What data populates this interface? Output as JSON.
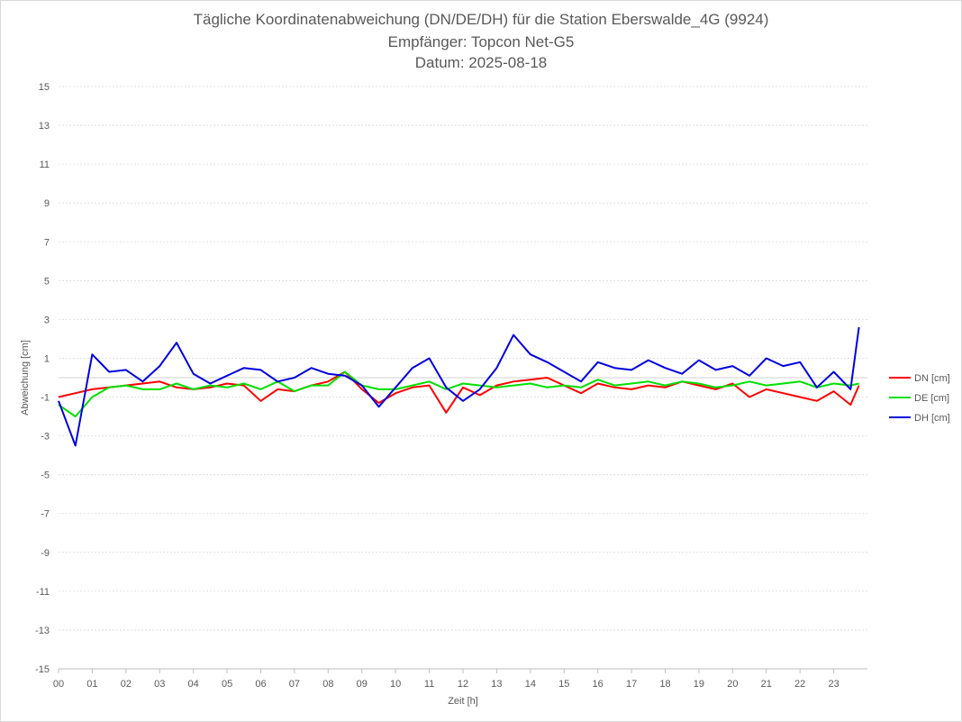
{
  "chart_data": {
    "type": "line",
    "title": "Tägliche Koordinatenabweichung (DN/DE/DH) für die Station Eberswalde_4G (9924)",
    "subtitle": "Empfänger: Topcon Net-G5",
    "date_label": "Datum: 2025-08-18",
    "xlabel": "Zeit [h]",
    "ylabel": "Abweichung [cm]",
    "xlim": [
      0,
      24
    ],
    "ylim": [
      -15,
      15
    ],
    "x_ticks": [
      "00",
      "01",
      "02",
      "03",
      "04",
      "05",
      "06",
      "07",
      "08",
      "09",
      "10",
      "11",
      "12",
      "13",
      "14",
      "15",
      "16",
      "17",
      "18",
      "19",
      "20",
      "21",
      "22",
      "23"
    ],
    "y_ticks": [
      15,
      13,
      11,
      9,
      7,
      5,
      3,
      1,
      -1,
      -3,
      -5,
      -7,
      -9,
      -11,
      -13,
      -15
    ],
    "grid": true,
    "legend_position": "right",
    "x": [
      0,
      0.5,
      1,
      1.5,
      2,
      2.5,
      3,
      3.5,
      4,
      4.5,
      5,
      5.5,
      6,
      6.5,
      7,
      7.5,
      8,
      8.5,
      9,
      9.5,
      10,
      10.5,
      11,
      11.5,
      12,
      12.5,
      13,
      13.5,
      14,
      14.5,
      15,
      15.5,
      16,
      16.5,
      17,
      17.5,
      18,
      18.5,
      19,
      19.5,
      20,
      20.5,
      21,
      21.5,
      22,
      22.5,
      23,
      23.5,
      23.75
    ],
    "series": [
      {
        "name": "DN [cm]",
        "color": "#ff0000",
        "values": [
          -1.0,
          -0.8,
          -0.6,
          -0.5,
          -0.4,
          -0.3,
          -0.2,
          -0.5,
          -0.6,
          -0.5,
          -0.3,
          -0.4,
          -1.2,
          -0.6,
          -0.7,
          -0.4,
          -0.2,
          0.3,
          -0.6,
          -1.3,
          -0.8,
          -0.5,
          -0.4,
          -1.8,
          -0.5,
          -0.9,
          -0.4,
          -0.2,
          -0.1,
          0.0,
          -0.4,
          -0.8,
          -0.3,
          -0.5,
          -0.6,
          -0.4,
          -0.5,
          -0.2,
          -0.4,
          -0.6,
          -0.3,
          -1.0,
          -0.6,
          -0.8,
          -1.0,
          -1.2,
          -0.7,
          -1.4,
          -0.4
        ]
      },
      {
        "name": "DE [cm]",
        "color": "#00e000",
        "values": [
          -1.4,
          -2.0,
          -1.0,
          -0.5,
          -0.4,
          -0.6,
          -0.6,
          -0.3,
          -0.6,
          -0.4,
          -0.5,
          -0.3,
          -0.6,
          -0.2,
          -0.7,
          -0.4,
          -0.4,
          0.3,
          -0.4,
          -0.6,
          -0.6,
          -0.4,
          -0.2,
          -0.6,
          -0.3,
          -0.4,
          -0.5,
          -0.4,
          -0.3,
          -0.5,
          -0.4,
          -0.5,
          -0.1,
          -0.4,
          -0.3,
          -0.2,
          -0.4,
          -0.2,
          -0.3,
          -0.5,
          -0.4,
          -0.2,
          -0.4,
          -0.3,
          -0.2,
          -0.5,
          -0.3,
          -0.4,
          -0.3
        ]
      },
      {
        "name": "DH [cm]",
        "color": "#0000e0",
        "values": [
          -1.2,
          -3.5,
          1.2,
          0.3,
          0.4,
          -0.2,
          0.6,
          1.8,
          0.2,
          -0.3,
          0.1,
          0.5,
          0.4,
          -0.2,
          0.0,
          0.5,
          0.2,
          0.1,
          -0.4,
          -1.5,
          -0.5,
          0.5,
          1.0,
          -0.5,
          -1.2,
          -0.6,
          0.5,
          2.2,
          1.2,
          0.8,
          0.3,
          -0.2,
          0.8,
          0.5,
          0.4,
          0.9,
          0.5,
          0.2,
          0.9,
          0.4,
          0.6,
          0.1,
          1.0,
          0.6,
          0.8,
          -0.5,
          0.3,
          -0.6,
          2.6
        ]
      }
    ]
  }
}
